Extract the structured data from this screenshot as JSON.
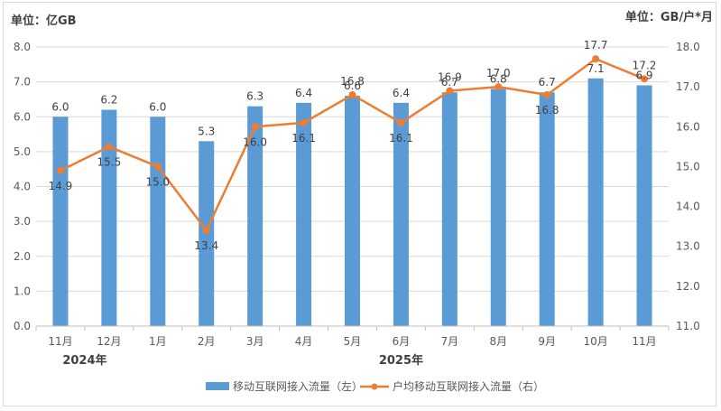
{
  "chart_data": {
    "type": "bar+line",
    "left_unit": "单位：亿GB",
    "right_unit": "单位：GB/户*月",
    "categories": [
      "11月",
      "12月",
      "1月",
      "2月",
      "3月",
      "4月",
      "5月",
      "6月",
      "7月",
      "8月",
      "9月",
      "10月",
      "11月"
    ],
    "year_labels": [
      {
        "label": "2024年",
        "span": [
          0,
          1
        ]
      },
      {
        "label": "2025年",
        "span": [
          2,
          12
        ]
      }
    ],
    "left_axis": {
      "min": 0,
      "max": 8,
      "step": 1,
      "ticks": [
        "0.0",
        "1.0",
        "2.0",
        "3.0",
        "4.0",
        "5.0",
        "6.0",
        "7.0",
        "8.0"
      ]
    },
    "right_axis": {
      "min": 11,
      "max": 18,
      "step": 1,
      "ticks": [
        "11.0",
        "12.0",
        "13.0",
        "14.0",
        "15.0",
        "16.0",
        "17.0",
        "18.0"
      ]
    },
    "series": [
      {
        "name": "移动互联网接入流量（左）",
        "type": "bar",
        "axis": "left",
        "color": "#5b9bd5",
        "values": [
          6.0,
          6.2,
          6.0,
          5.3,
          6.3,
          6.4,
          6.6,
          6.4,
          6.7,
          6.8,
          6.7,
          7.1,
          6.9
        ],
        "labels": [
          "6.0",
          "6.2",
          "6.0",
          "5.3",
          "6.3",
          "6.4",
          "6.6",
          "6.4",
          "6.7",
          "6.8",
          "6.7",
          "7.1",
          "6.9"
        ]
      },
      {
        "name": "户均移动互联网接入流量（右）",
        "type": "line",
        "axis": "right",
        "color": "#ed7d31",
        "values": [
          14.9,
          15.5,
          15.0,
          13.4,
          16.0,
          16.1,
          16.8,
          16.1,
          16.9,
          17.0,
          16.8,
          17.7,
          17.2
        ],
        "labels": [
          "14.9",
          "15.5",
          "15.0",
          "13.4",
          "16.0",
          "16.1",
          "16.8",
          "16.1",
          "16.9",
          "17.0",
          "16.8",
          "17.7",
          "17.2"
        ]
      }
    ]
  }
}
